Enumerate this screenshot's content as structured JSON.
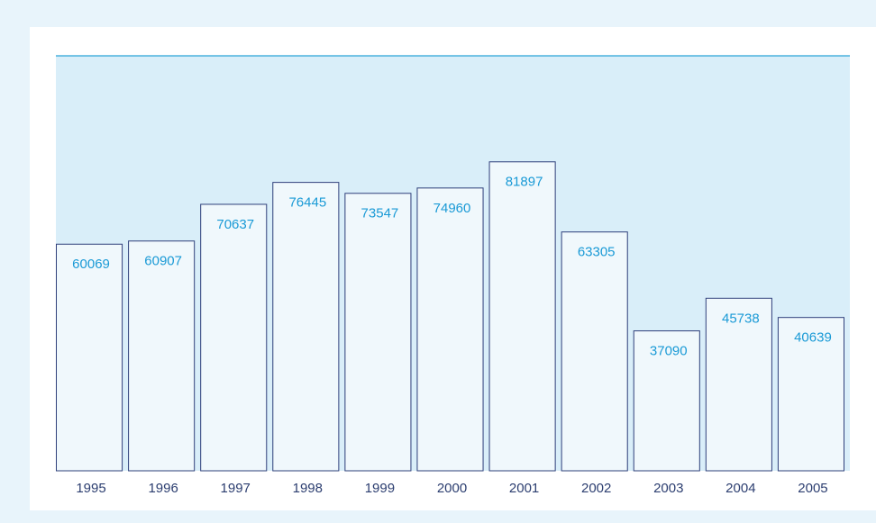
{
  "chart_data": {
    "type": "bar",
    "categories": [
      "1995",
      "1996",
      "1997",
      "1998",
      "1999",
      "2000",
      "2001",
      "2002",
      "2003",
      "2004",
      "2005"
    ],
    "values": [
      60069,
      60907,
      70637,
      76445,
      73547,
      74960,
      81897,
      63305,
      37090,
      45738,
      40639
    ],
    "color": "#f0f8fc",
    "ylim": [
      0,
      110000
    ]
  }
}
